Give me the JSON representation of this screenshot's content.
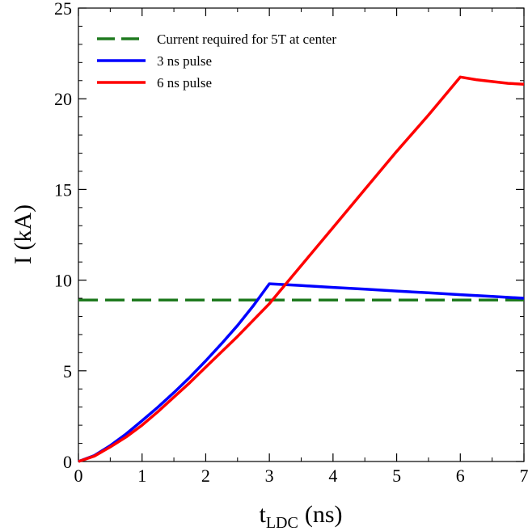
{
  "chart_data": {
    "type": "line",
    "title": "",
    "xlabel": "t",
    "xlabel_subscript": "LDC",
    "xlabel_unit": "(ns)",
    "ylabel": "I (kA)",
    "xlim": [
      0,
      7
    ],
    "ylim": [
      0,
      25
    ],
    "xticks": [
      0,
      1,
      2,
      3,
      4,
      5,
      6,
      7
    ],
    "yticks": [
      0,
      5,
      10,
      15,
      20,
      25
    ],
    "xtick_labels": [
      "0",
      "1",
      "2",
      "3",
      "4",
      "5",
      "6",
      "7"
    ],
    "ytick_labels": [
      "0",
      "5",
      "10",
      "15",
      "20",
      "25"
    ],
    "grid": false,
    "legend_position": "top-left",
    "series": [
      {
        "name": "Current required for 5T at center",
        "color": "#1f7a1f",
        "dash": "dashed",
        "x": [
          0,
          7
        ],
        "y": [
          8.9,
          8.9
        ]
      },
      {
        "name": "3 ns pulse",
        "color": "#0000ff",
        "dash": "solid",
        "x": [
          0,
          0.25,
          0.5,
          0.75,
          1,
          1.25,
          1.5,
          1.75,
          2,
          2.25,
          2.5,
          2.75,
          3,
          3.5,
          4,
          4.5,
          5,
          5.5,
          6,
          6.5,
          7
        ],
        "y": [
          0,
          0.33,
          0.88,
          1.52,
          2.25,
          3.0,
          3.8,
          4.65,
          5.55,
          6.5,
          7.5,
          8.6,
          9.8,
          9.7,
          9.6,
          9.5,
          9.4,
          9.3,
          9.2,
          9.1,
          9.0
        ]
      },
      {
        "name": "6 ns pulse",
        "color": "#ff0000",
        "dash": "solid",
        "x": [
          0,
          0.25,
          0.5,
          0.75,
          1,
          1.25,
          1.5,
          1.75,
          2,
          2.5,
          3,
          3.5,
          4,
          4.5,
          5,
          5.5,
          6,
          6.25,
          6.5,
          6.75,
          7
        ],
        "y": [
          0,
          0.3,
          0.8,
          1.35,
          2.0,
          2.75,
          3.55,
          4.35,
          5.2,
          6.9,
          8.7,
          10.8,
          12.9,
          15.0,
          17.1,
          19.1,
          21.2,
          21.05,
          20.95,
          20.85,
          20.8
        ]
      }
    ]
  }
}
